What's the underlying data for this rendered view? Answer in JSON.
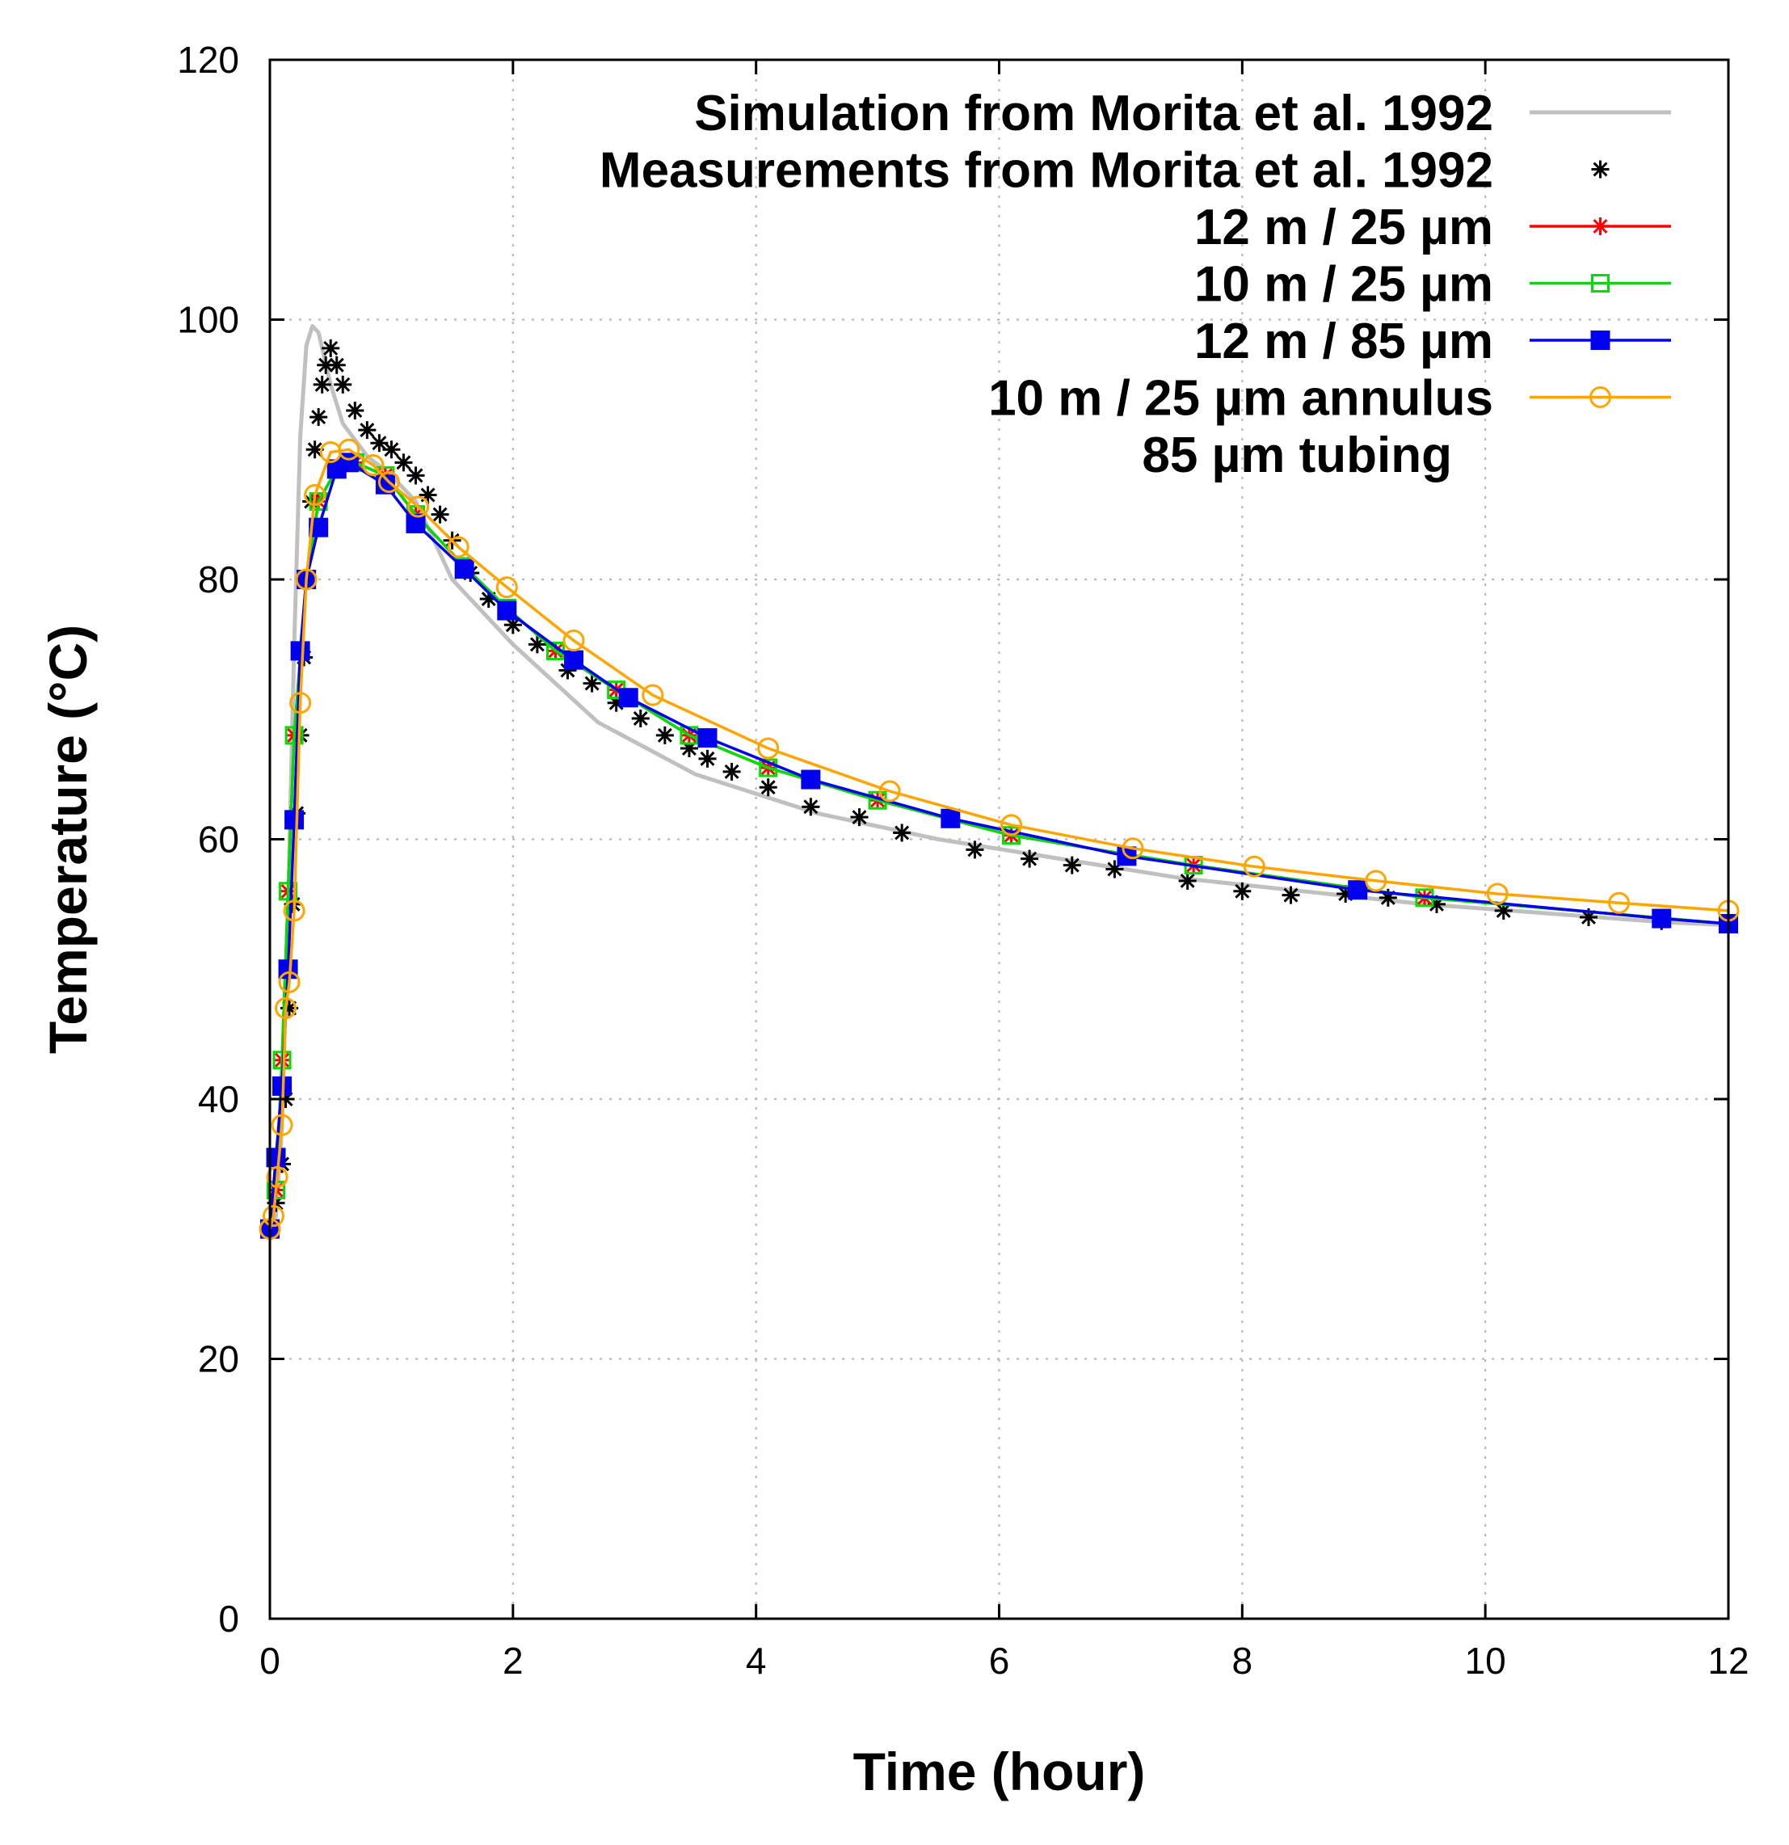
{
  "chart_data": {
    "type": "line",
    "title": "",
    "xlabel": "Time (hour)",
    "ylabel": "Temperature (°C)",
    "xlim": [
      0,
      12
    ],
    "ylim": [
      0,
      120
    ],
    "xticks": [
      "0",
      "2",
      "4",
      "6",
      "8",
      "10",
      "12"
    ],
    "yticks": [
      "0",
      "20",
      "40",
      "60",
      "80",
      "100",
      "120"
    ],
    "grid": true,
    "legend_position": "top-right",
    "series": [
      {
        "name": "Simulation from Morita et al. 1992",
        "color": "#c0c0c0",
        "line": true,
        "marker": "none",
        "x": [
          0.0,
          0.05,
          0.1,
          0.15,
          0.2,
          0.25,
          0.3,
          0.35,
          0.4,
          0.45,
          0.5,
          0.6,
          0.8,
          1.0,
          1.2,
          1.5,
          2.0,
          2.7,
          3.5,
          4.5,
          5.5,
          6.5,
          7.5,
          8.5,
          9.5,
          10.5,
          11.5,
          12.0
        ],
        "values": [
          30,
          31,
          38,
          55,
          75,
          91,
          98,
          99.5,
          99,
          97,
          95,
          92,
          89.5,
          88,
          86,
          80,
          75,
          69,
          65,
          62,
          60,
          58.5,
          57,
          56,
          55,
          54.3,
          53.6,
          53.4
        ]
      },
      {
        "name": "Measurements from Morita et al. 1992",
        "color": "#000000",
        "line": false,
        "marker": "asterisk",
        "x": [
          0.0,
          0.05,
          0.1,
          0.13,
          0.16,
          0.19,
          0.22,
          0.25,
          0.28,
          0.31,
          0.34,
          0.37,
          0.4,
          0.43,
          0.46,
          0.5,
          0.55,
          0.6,
          0.7,
          0.8,
          0.9,
          1.0,
          1.1,
          1.2,
          1.3,
          1.4,
          1.5,
          1.65,
          1.8,
          2.0,
          2.2,
          2.45,
          2.65,
          2.85,
          3.05,
          3.25,
          3.45,
          3.6,
          3.8,
          4.1,
          4.45,
          4.85,
          5.2,
          5.8,
          6.25,
          6.6,
          6.95,
          7.55,
          8.0,
          8.4,
          8.85,
          9.2,
          9.6,
          10.15,
          10.85,
          11.45
        ],
        "values": [
          30,
          32,
          35,
          40,
          47,
          55,
          62,
          68,
          74,
          80,
          86,
          90,
          92.5,
          95,
          96.5,
          97.8,
          96.5,
          95,
          93,
          91.5,
          90.5,
          90,
          89,
          88,
          86.5,
          85,
          83,
          80.5,
          78.5,
          76.5,
          75,
          73,
          72,
          70.5,
          69.3,
          68,
          67,
          66.2,
          65.2,
          64,
          62.5,
          61.7,
          60.5,
          59.2,
          58.5,
          58,
          57.7,
          56.8,
          56,
          55.7,
          55.8,
          55.5,
          55,
          54.5,
          54,
          53.7
        ]
      },
      {
        "name": "12 m / 25 µm",
        "color": "#ff0000",
        "line": true,
        "marker": "asterisk",
        "x": [
          0.0,
          0.05,
          0.1,
          0.15,
          0.2,
          0.3,
          0.4,
          0.55,
          0.7,
          0.95,
          1.2,
          1.6,
          1.95,
          2.35,
          2.85,
          3.45,
          4.1,
          5.0,
          6.1,
          7.6,
          9.5,
          12.0
        ],
        "values": [
          30,
          33,
          43,
          56,
          68,
          80,
          86,
          88.5,
          89,
          88,
          85,
          81,
          77.8,
          74.5,
          71.5,
          68,
          65.5,
          63,
          60.3,
          58,
          55.5,
          53.5
        ]
      },
      {
        "name": "10 m / 25 µm",
        "color": "#00dd00",
        "line": true,
        "marker": "open-square",
        "x": [
          0.0,
          0.05,
          0.1,
          0.15,
          0.2,
          0.3,
          0.4,
          0.55,
          0.7,
          0.95,
          1.2,
          1.6,
          1.95,
          2.35,
          2.85,
          3.45,
          4.1,
          5.0,
          6.1,
          7.6,
          9.5,
          12.0
        ],
        "values": [
          30,
          33,
          43,
          56,
          68,
          80,
          86,
          88.5,
          89,
          88,
          85,
          81,
          77.8,
          74.5,
          71.5,
          68,
          65.5,
          63,
          60.3,
          58,
          55.5,
          53.5
        ]
      },
      {
        "name": "12 m / 85 µm",
        "color": "#0000ee",
        "line": true,
        "marker": "filled-square",
        "x": [
          0.0,
          0.05,
          0.1,
          0.15,
          0.2,
          0.25,
          0.3,
          0.4,
          0.55,
          0.65,
          0.95,
          1.2,
          1.6,
          1.95,
          2.5,
          2.95,
          3.6,
          4.45,
          5.6,
          7.05,
          8.95,
          11.45,
          12.0
        ],
        "values": [
          30,
          35.5,
          41,
          50,
          61.5,
          74.5,
          80,
          84,
          88.5,
          89,
          87.3,
          84.3,
          80.8,
          77.6,
          73.8,
          70.9,
          67.8,
          64.6,
          61.6,
          58.7,
          56.1,
          53.9,
          53.5
        ]
      },
      {
        "name": "10 m / 25 µm annulus",
        "subtitle": "85 µm tubing",
        "color": "#ffa500",
        "line": true,
        "marker": "open-circle",
        "x": [
          0.0,
          0.03,
          0.06,
          0.1,
          0.13,
          0.16,
          0.2,
          0.25,
          0.3,
          0.37,
          0.5,
          0.65,
          0.85,
          0.98,
          1.22,
          1.55,
          1.95,
          2.5,
          3.15,
          4.1,
          5.1,
          6.1,
          7.1,
          8.1,
          9.1,
          10.1,
          11.1,
          12.0
        ],
        "values": [
          30,
          31,
          34,
          38,
          47,
          49,
          54.5,
          70.5,
          80,
          86.5,
          89.8,
          90,
          88.8,
          87.5,
          85.6,
          82.5,
          79.4,
          75.3,
          71.1,
          67,
          63.7,
          61.1,
          59.3,
          57.9,
          56.8,
          55.8,
          55.1,
          54.5
        ]
      }
    ]
  }
}
